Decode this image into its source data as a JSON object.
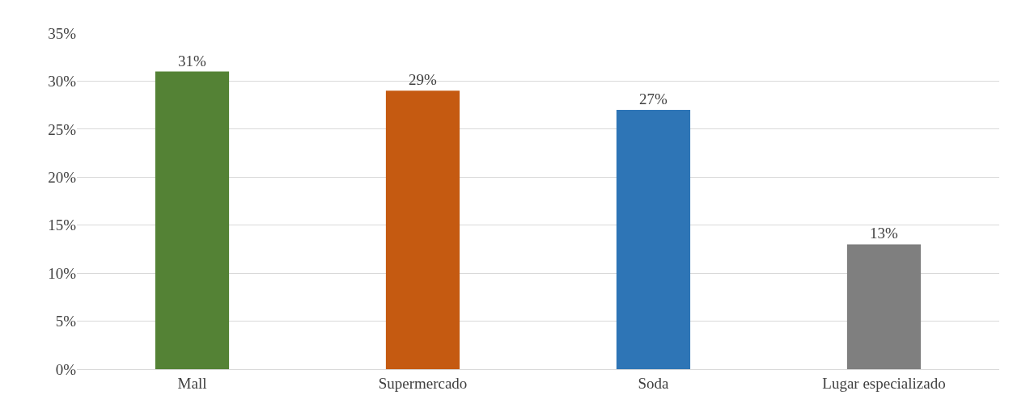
{
  "chart_data": {
    "type": "bar",
    "categories": [
      "Mall",
      "Supermercado",
      "Soda",
      "Lugar especializado"
    ],
    "values": [
      31,
      29,
      27,
      13
    ],
    "colors": [
      "#548235",
      "#c55a11",
      "#2e75b6",
      "#7f7f7f"
    ],
    "value_labels": [
      "31%",
      "29%",
      "27%",
      "13%"
    ],
    "ylim": [
      0,
      35
    ],
    "yticks": [
      {
        "value": 0,
        "label": "0%"
      },
      {
        "value": 5,
        "label": "5%"
      },
      {
        "value": 10,
        "label": "10%"
      },
      {
        "value": 15,
        "label": "15%"
      },
      {
        "value": 20,
        "label": "20%"
      },
      {
        "value": 25,
        "label": "25%"
      },
      {
        "value": 30,
        "label": "30%"
      },
      {
        "value": 35,
        "label": "35%"
      }
    ],
    "grid": "y"
  }
}
